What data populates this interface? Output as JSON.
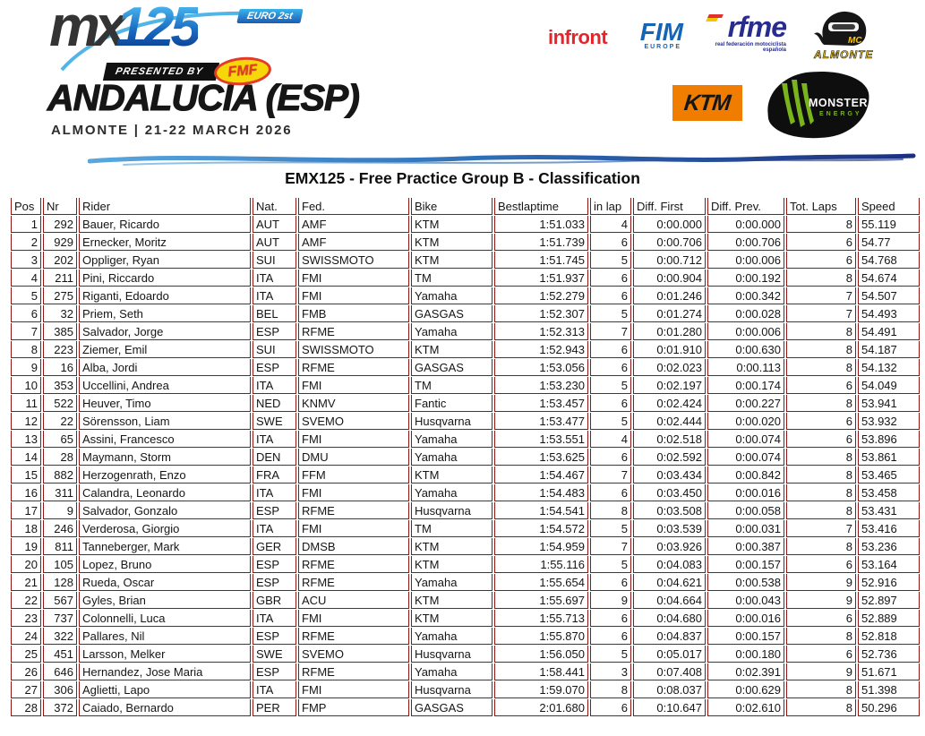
{
  "header": {
    "series": {
      "mx": "MX",
      "num": "125",
      "euro_badge": "EURO 2st",
      "presented_by": "PRESENTED BY",
      "fmf": "FMF"
    },
    "event_title": "ANDALUCIA (ESP)",
    "event_subtitle": "ALMONTE | 21-22 MARCH 2026",
    "sponsors": {
      "infront": "infront",
      "fim": "FIM",
      "fim_sub": "EUROPE",
      "rfme": "rfme",
      "rfme_sub": "real federación motociclista española",
      "almonte_top": "MC",
      "almonte_bottom": "ALMONTE",
      "ktm": "KTM",
      "monster": "MONSTER",
      "monster_sub": "ENERGY"
    }
  },
  "table": {
    "title": "EMX125 - Free Practice Group B - Classification",
    "columns": [
      "Pos",
      "Nr",
      "Rider",
      "Nat.",
      "Fed.",
      "Bike",
      "Bestlaptime",
      "in lap",
      "Diff. First",
      "Diff. Prev.",
      "Tot. Laps",
      "Speed"
    ],
    "rows": [
      [
        "1",
        "292",
        "Bauer, Ricardo",
        "AUT",
        "AMF",
        "KTM",
        "1:51.033",
        "4",
        "0:00.000",
        "0:00.000",
        "8",
        "55.119"
      ],
      [
        "2",
        "929",
        "Ernecker, Moritz",
        "AUT",
        "AMF",
        "KTM",
        "1:51.739",
        "6",
        "0:00.706",
        "0:00.706",
        "6",
        "54.77"
      ],
      [
        "3",
        "202",
        "Oppliger, Ryan",
        "SUI",
        "SWISSMOTO",
        "KTM",
        "1:51.745",
        "5",
        "0:00.712",
        "0:00.006",
        "6",
        "54.768"
      ],
      [
        "4",
        "211",
        "Pini, Riccardo",
        "ITA",
        "FMI",
        "TM",
        "1:51.937",
        "6",
        "0:00.904",
        "0:00.192",
        "8",
        "54.674"
      ],
      [
        "5",
        "275",
        "Riganti, Edoardo",
        "ITA",
        "FMI",
        "Yamaha",
        "1:52.279",
        "6",
        "0:01.246",
        "0:00.342",
        "7",
        "54.507"
      ],
      [
        "6",
        "32",
        "Priem, Seth",
        "BEL",
        "FMB",
        "GASGAS",
        "1:52.307",
        "5",
        "0:01.274",
        "0:00.028",
        "7",
        "54.493"
      ],
      [
        "7",
        "385",
        "Salvador, Jorge",
        "ESP",
        "RFME",
        "Yamaha",
        "1:52.313",
        "7",
        "0:01.280",
        "0:00.006",
        "8",
        "54.491"
      ],
      [
        "8",
        "223",
        "Ziemer, Emil",
        "SUI",
        "SWISSMOTO",
        "KTM",
        "1:52.943",
        "6",
        "0:01.910",
        "0:00.630",
        "8",
        "54.187"
      ],
      [
        "9",
        "16",
        "Alba, Jordi",
        "ESP",
        "RFME",
        "GASGAS",
        "1:53.056",
        "6",
        "0:02.023",
        "0:00.113",
        "8",
        "54.132"
      ],
      [
        "10",
        "353",
        "Uccellini, Andrea",
        "ITA",
        "FMI",
        "TM",
        "1:53.230",
        "5",
        "0:02.197",
        "0:00.174",
        "6",
        "54.049"
      ],
      [
        "11",
        "522",
        "Heuver, Timo",
        "NED",
        "KNMV",
        "Fantic",
        "1:53.457",
        "6",
        "0:02.424",
        "0:00.227",
        "8",
        "53.941"
      ],
      [
        "12",
        "22",
        "Sörensson, Liam",
        "SWE",
        "SVEMO",
        "Husqvarna",
        "1:53.477",
        "5",
        "0:02.444",
        "0:00.020",
        "6",
        "53.932"
      ],
      [
        "13",
        "65",
        "Assini, Francesco",
        "ITA",
        "FMI",
        "Yamaha",
        "1:53.551",
        "4",
        "0:02.518",
        "0:00.074",
        "6",
        "53.896"
      ],
      [
        "14",
        "28",
        "Maymann, Storm",
        "DEN",
        "DMU",
        "Yamaha",
        "1:53.625",
        "6",
        "0:02.592",
        "0:00.074",
        "8",
        "53.861"
      ],
      [
        "15",
        "882",
        "Herzogenrath, Enzo",
        "FRA",
        "FFM",
        "KTM",
        "1:54.467",
        "7",
        "0:03.434",
        "0:00.842",
        "8",
        "53.465"
      ],
      [
        "16",
        "311",
        "Calandra, Leonardo",
        "ITA",
        "FMI",
        "Yamaha",
        "1:54.483",
        "6",
        "0:03.450",
        "0:00.016",
        "8",
        "53.458"
      ],
      [
        "17",
        "9",
        "Salvador, Gonzalo",
        "ESP",
        "RFME",
        "Husqvarna",
        "1:54.541",
        "8",
        "0:03.508",
        "0:00.058",
        "8",
        "53.431"
      ],
      [
        "18",
        "246",
        "Verderosa, Giorgio",
        "ITA",
        "FMI",
        "TM",
        "1:54.572",
        "5",
        "0:03.539",
        "0:00.031",
        "7",
        "53.416"
      ],
      [
        "19",
        "811",
        "Tanneberger, Mark",
        "GER",
        "DMSB",
        "KTM",
        "1:54.959",
        "7",
        "0:03.926",
        "0:00.387",
        "8",
        "53.236"
      ],
      [
        "20",
        "105",
        "Lopez, Bruno",
        "ESP",
        "RFME",
        "KTM",
        "1:55.116",
        "5",
        "0:04.083",
        "0:00.157",
        "6",
        "53.164"
      ],
      [
        "21",
        "128",
        "Rueda, Oscar",
        "ESP",
        "RFME",
        "Yamaha",
        "1:55.654",
        "6",
        "0:04.621",
        "0:00.538",
        "9",
        "52.916"
      ],
      [
        "22",
        "567",
        "Gyles, Brian",
        "GBR",
        "ACU",
        "KTM",
        "1:55.697",
        "9",
        "0:04.664",
        "0:00.043",
        "9",
        "52.897"
      ],
      [
        "23",
        "737",
        "Colonnelli, Luca",
        "ITA",
        "FMI",
        "KTM",
        "1:55.713",
        "6",
        "0:04.680",
        "0:00.016",
        "6",
        "52.889"
      ],
      [
        "24",
        "322",
        "Pallares, Nil",
        "ESP",
        "RFME",
        "Yamaha",
        "1:55.870",
        "6",
        "0:04.837",
        "0:00.157",
        "8",
        "52.818"
      ],
      [
        "25",
        "451",
        "Larsson, Melker",
        "SWE",
        "SVEMO",
        "Husqvarna",
        "1:56.050",
        "5",
        "0:05.017",
        "0:00.180",
        "6",
        "52.736"
      ],
      [
        "26",
        "646",
        "Hernandez, Jose Maria",
        "ESP",
        "RFME",
        "Yamaha",
        "1:58.441",
        "3",
        "0:07.408",
        "0:02.391",
        "9",
        "51.671"
      ],
      [
        "27",
        "306",
        "Aglietti, Lapo",
        "ITA",
        "FMI",
        "Husqvarna",
        "1:59.070",
        "8",
        "0:08.037",
        "0:00.629",
        "8",
        "51.398"
      ],
      [
        "28",
        "372",
        "Caiado, Bernardo",
        "PER",
        "FMP",
        "GASGAS",
        "2:01.680",
        "6",
        "0:10.647",
        "0:02.610",
        "8",
        "50.296"
      ]
    ]
  },
  "colors": {
    "table_border": "#941414",
    "ktm_orange": "#f07c00",
    "monster_green": "#7ab41d",
    "infront_red": "#e4252b",
    "fim_blue": "#1565b6",
    "rfme_blue": "#272c8e",
    "brush_blue_light": "#5aa7de",
    "brush_blue_dark": "#1d2f80"
  }
}
